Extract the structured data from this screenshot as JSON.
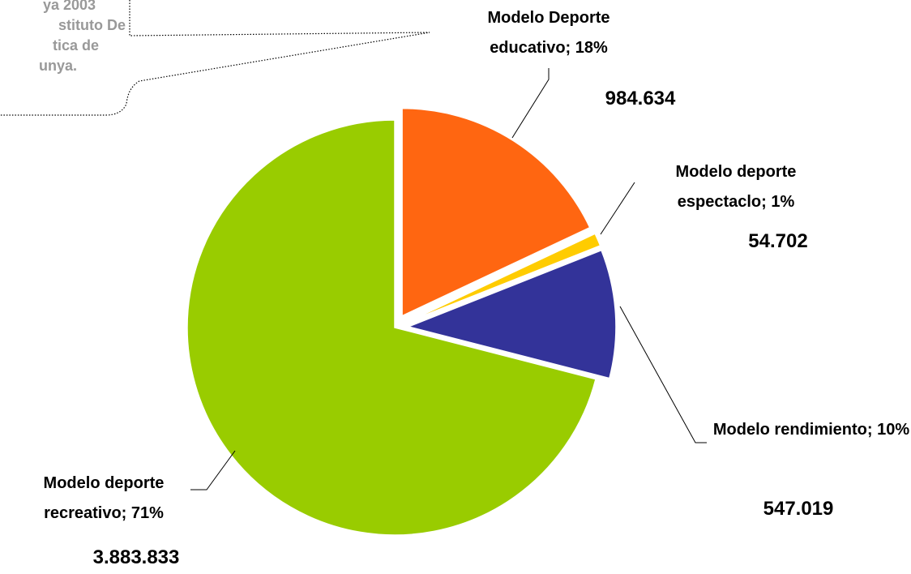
{
  "chart_data": {
    "type": "pie",
    "annotation": [
      "ya 2003",
      "stituto De",
      "tica de",
      "unya."
    ],
    "categories": [
      "Modelo Deporte educativo; 18%",
      "Modelo deporte espectaclo; 1%",
      "Modelo rendimiento; 10%",
      "Modelo deporte recreativo; 71%"
    ],
    "values": [
      984634,
      54702,
      547019,
      3883833
    ],
    "value_labels": [
      "984.634",
      "54.702",
      "547.019",
      "3.883.833"
    ],
    "colors": [
      "#ff6611",
      "#ffcc00",
      "#333399",
      "#99cc00"
    ]
  }
}
